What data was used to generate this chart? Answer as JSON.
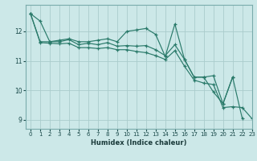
{
  "xlabel": "Humidex (Indice chaleur)",
  "xlim": [
    -0.5,
    23
  ],
  "ylim": [
    8.7,
    12.9
  ],
  "xticks": [
    0,
    1,
    2,
    3,
    4,
    5,
    6,
    7,
    8,
    9,
    10,
    11,
    12,
    13,
    14,
    15,
    16,
    17,
    18,
    19,
    20,
    21,
    22,
    23
  ],
  "yticks": [
    9,
    10,
    11,
    12
  ],
  "bg_color": "#cce8e8",
  "grid_color": "#aacccc",
  "line_color": "#2a7a6a",
  "line1_x": [
    0,
    1,
    2,
    3,
    4,
    5,
    6,
    7,
    8,
    9,
    10,
    11,
    12,
    13,
    14,
    15,
    16,
    17,
    18,
    19,
    20,
    21,
    22
  ],
  "line1_y": [
    12.6,
    12.35,
    11.65,
    11.7,
    11.75,
    11.65,
    11.65,
    11.7,
    11.75,
    11.65,
    12.0,
    12.05,
    12.1,
    11.9,
    11.15,
    12.25,
    11.05,
    10.45,
    10.45,
    9.95,
    9.55,
    10.45,
    9.05
  ],
  "line2_x": [
    0,
    1,
    2,
    3,
    4,
    5,
    6,
    7,
    8,
    9,
    10,
    11,
    12,
    13,
    14,
    15,
    16,
    17,
    18,
    19,
    20,
    21
  ],
  "line2_y": [
    12.6,
    11.65,
    11.65,
    11.65,
    11.72,
    11.55,
    11.6,
    11.55,
    11.62,
    11.5,
    11.52,
    11.5,
    11.52,
    11.38,
    11.18,
    11.55,
    11.05,
    10.45,
    10.45,
    10.5,
    9.55,
    10.45
  ],
  "line3_x": [
    0,
    1,
    2,
    3,
    4,
    5,
    6,
    7,
    8,
    9,
    10,
    11,
    12,
    13,
    14,
    15,
    16,
    17,
    18,
    19,
    20,
    21,
    22,
    23
  ],
  "line3_y": [
    12.6,
    11.62,
    11.6,
    11.58,
    11.6,
    11.45,
    11.45,
    11.42,
    11.45,
    11.38,
    11.38,
    11.32,
    11.28,
    11.18,
    11.05,
    11.35,
    10.82,
    10.35,
    10.25,
    10.2,
    9.42,
    9.45,
    9.42,
    9.05
  ]
}
